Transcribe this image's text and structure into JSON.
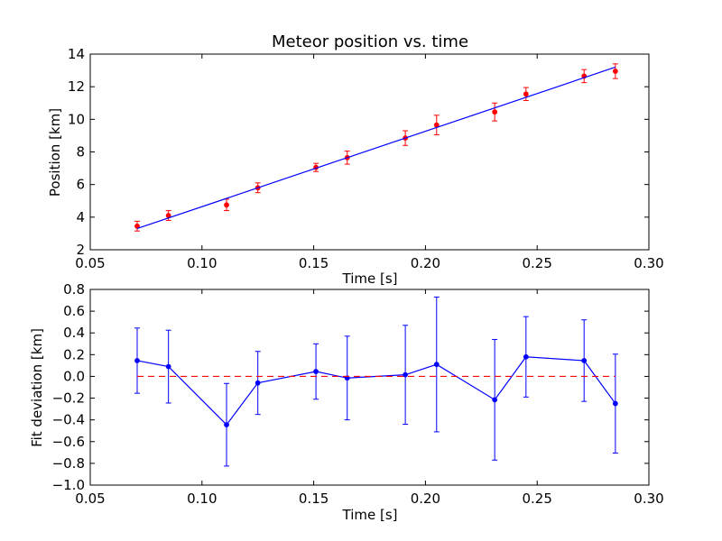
{
  "chart_data": [
    {
      "type": "scatter",
      "title": "Meteor position vs. time",
      "xlabel": "Time [s]",
      "ylabel": "Position [km]",
      "xlim": [
        0.05,
        0.3
      ],
      "ylim": [
        2,
        14
      ],
      "xticks": [
        "0.05",
        "0.10",
        "0.15",
        "0.20",
        "0.25",
        "0.30"
      ],
      "yticks": [
        "2",
        "4",
        "6",
        "8",
        "10",
        "12",
        "14"
      ],
      "grid": false,
      "series": [
        {
          "kind": "points-with-errorbars",
          "color": "#ff0000",
          "x": [
            0.071,
            0.085,
            0.111,
            0.125,
            0.151,
            0.165,
            0.191,
            0.205,
            0.231,
            0.245,
            0.271,
            0.285
          ],
          "y": [
            3.45,
            4.1,
            4.75,
            5.8,
            7.05,
            7.65,
            8.85,
            9.65,
            10.45,
            11.55,
            12.65,
            12.95
          ],
          "yerr": [
            0.3,
            0.3,
            0.35,
            0.3,
            0.25,
            0.4,
            0.45,
            0.6,
            0.55,
            0.4,
            0.4,
            0.45
          ]
        },
        {
          "kind": "fit-line",
          "color": "#0000ff",
          "x": [
            0.071,
            0.285
          ],
          "y": [
            3.3,
            13.2
          ]
        }
      ]
    },
    {
      "type": "line",
      "title": "",
      "xlabel": "Time [s]",
      "ylabel": "Fit deviation [km]",
      "xlim": [
        0.05,
        0.3
      ],
      "ylim": [
        -1.0,
        0.8
      ],
      "xticks": [
        "0.05",
        "0.10",
        "0.15",
        "0.20",
        "0.25",
        "0.30"
      ],
      "yticks": [
        "−1.0",
        "−0.8",
        "−0.6",
        "−0.4",
        "−0.2",
        "0.0",
        "0.2",
        "0.4",
        "0.6",
        "0.8"
      ],
      "grid": false,
      "series": [
        {
          "kind": "line-with-errorbars",
          "color": "#0000ff",
          "x": [
            0.071,
            0.085,
            0.111,
            0.125,
            0.151,
            0.165,
            0.191,
            0.205,
            0.231,
            0.245,
            0.271,
            0.285
          ],
          "y": [
            0.145,
            0.09,
            -0.445,
            -0.06,
            0.045,
            -0.015,
            0.015,
            0.11,
            -0.215,
            0.18,
            0.145,
            -0.25
          ],
          "yerr": [
            0.3,
            0.335,
            0.38,
            0.29,
            0.255,
            0.385,
            0.455,
            0.62,
            0.555,
            0.37,
            0.375,
            0.455
          ]
        },
        {
          "kind": "reference-line",
          "style": "dashed",
          "color": "#ff0000",
          "x": [
            0.071,
            0.285
          ],
          "y": [
            0.0,
            0.0
          ]
        }
      ]
    }
  ]
}
